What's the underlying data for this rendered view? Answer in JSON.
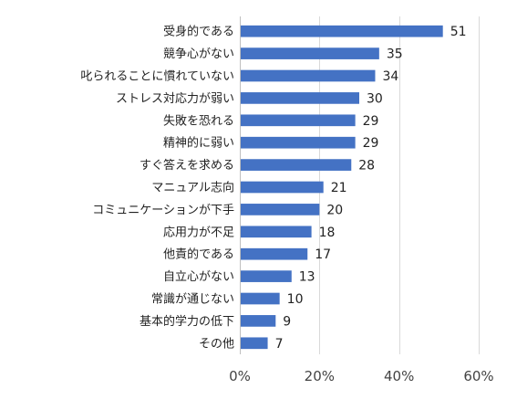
{
  "chart_data": {
    "type": "bar",
    "orientation": "horizontal",
    "categories": [
      "受身的である",
      "競争心がない",
      "叱られることに慣れていない",
      "ストレス対応力が弱い",
      "失敗を恐れる",
      "精神的に弱い",
      "すぐ答えを求める",
      "マニュアル志向",
      "コミュニケーションが下手",
      "応用力が不足",
      "他責的である",
      "自立心がない",
      "常識が通じない",
      "基本的学力の低下",
      "その他"
    ],
    "values": [
      51,
      35,
      34,
      30,
      29,
      29,
      28,
      21,
      20,
      18,
      17,
      13,
      10,
      9,
      7
    ],
    "value_labels": [
      "51",
      "35",
      "34",
      "30",
      "29",
      "29",
      "28",
      "21",
      "20",
      "18",
      "17",
      "13",
      "10",
      "9",
      "7"
    ],
    "xlim": [
      0,
      60
    ],
    "x_ticks": [
      0,
      20,
      40,
      60
    ],
    "x_tick_labels": [
      "0%",
      "20%",
      "40%",
      "60%"
    ],
    "grid": true,
    "legend": "none",
    "bar_color": "#4472c4"
  }
}
